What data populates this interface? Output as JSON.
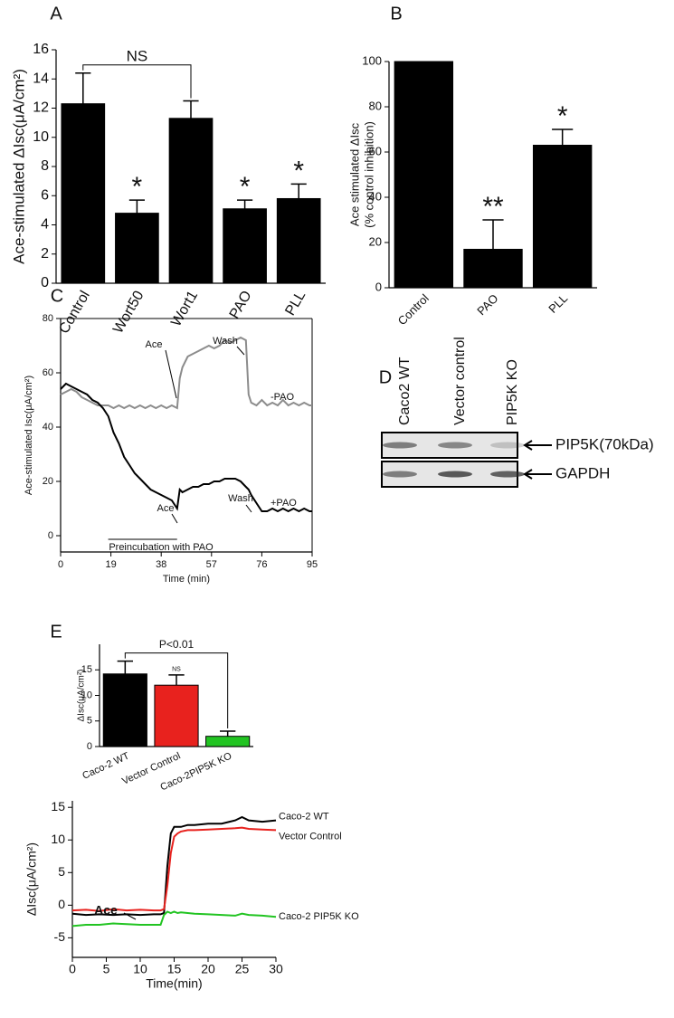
{
  "chart_data": [
    {
      "panel": "A",
      "type": "bar",
      "y_label": "Ace-stimulated ΔIsc(μA/cm²)",
      "categories": [
        "Control",
        "Wort50",
        "Wort1",
        "PAO",
        "PLL"
      ],
      "values": [
        12.3,
        4.8,
        11.3,
        5.1,
        5.8
      ],
      "errors": [
        2.1,
        0.9,
        1.2,
        0.6,
        1.0
      ],
      "color": "#000000",
      "ylim": [
        0,
        16
      ],
      "yticks": [
        0,
        2,
        4,
        6,
        8,
        10,
        12,
        14,
        16
      ],
      "significance": [
        null,
        "*",
        null,
        "*",
        "*"
      ],
      "brackets": [
        {
          "from": 0,
          "to": 2,
          "label": "NS"
        }
      ]
    },
    {
      "panel": "B",
      "type": "bar",
      "y_label": [
        "Ace stimulated ΔIsc",
        "(% control inhibition)"
      ],
      "categories": [
        "Control",
        "PAO",
        "PLL"
      ],
      "values": [
        100,
        17,
        63
      ],
      "errors": [
        null,
        13,
        7
      ],
      "color": "#000000",
      "ylim": [
        0,
        100
      ],
      "yticks": [
        0,
        20,
        40,
        60,
        80,
        100
      ],
      "significance": [
        null,
        "**",
        "*"
      ]
    },
    {
      "panel": "C",
      "type": "line",
      "y_label": "Ace-stimulated Isc(μA/cm²)",
      "x_label": "Time (min)",
      "x": [
        0,
        2,
        4,
        6,
        8,
        10,
        12,
        14,
        16,
        18,
        20,
        22,
        24,
        26,
        28,
        30,
        32,
        34,
        36,
        38,
        40,
        42,
        44,
        45,
        46,
        48,
        50,
        52,
        54,
        56,
        58,
        60,
        62,
        64,
        66,
        68,
        70,
        71,
        72,
        74,
        76,
        78,
        80,
        82,
        84,
        86,
        88,
        90,
        92,
        94,
        95
      ],
      "xlim": [
        0,
        95
      ],
      "xticks": [
        0,
        19,
        38,
        57,
        76,
        95
      ],
      "ylim": [
        -6,
        80
      ],
      "yticks": [
        0,
        20,
        40,
        60,
        80
      ],
      "series": [
        {
          "name": "-PAO",
          "color": "#8c8c8c",
          "values": [
            52,
            53,
            54,
            53,
            51,
            50,
            49,
            48,
            48,
            48,
            47,
            48,
            47,
            48,
            47,
            48,
            47,
            48,
            47,
            48,
            47,
            48,
            47,
            58,
            62,
            66,
            67,
            68,
            69,
            70,
            69,
            70,
            72,
            71,
            72,
            73,
            72,
            52,
            49,
            48,
            50,
            48,
            49,
            48,
            50,
            48,
            49,
            48,
            49,
            48,
            48
          ]
        },
        {
          "name": "+PAO",
          "color": "#000000",
          "values": [
            54,
            56,
            55,
            54,
            53,
            52,
            50,
            49,
            47,
            44,
            38,
            34,
            29,
            26,
            23,
            21,
            19,
            17,
            16,
            15,
            14,
            13,
            10,
            17,
            16,
            17,
            18,
            18,
            19,
            19,
            20,
            20,
            21,
            21,
            21,
            20,
            18,
            17,
            15,
            12,
            9,
            9,
            10,
            9,
            10,
            9,
            10,
            9,
            10,
            9,
            9
          ]
        }
      ],
      "annotations": [
        "Ace",
        "Wash",
        "Ace",
        "Wash",
        "Preincubation with PAO"
      ]
    },
    {
      "panel": "E",
      "type": "bar",
      "y_label": "ΔIsc(μA/cm²)",
      "categories": [
        "Caco-2 WT",
        "Vector Control",
        "Caco-2PIP5K KO"
      ],
      "values": [
        14.2,
        12,
        2
      ],
      "errors": [
        2.5,
        2,
        1
      ],
      "colors": [
        "#000000",
        "#e8221e",
        "#22c422"
      ],
      "ylim": [
        0,
        20
      ],
      "yticks": [
        0,
        5,
        10,
        15
      ],
      "significance": [
        null,
        "NS",
        null
      ],
      "brackets": [
        {
          "from": 0,
          "to": 2,
          "label": "P<0.01"
        }
      ]
    },
    {
      "type": "line",
      "y_label": "ΔIsc(μA/cm²)",
      "x_label": "Time(min)",
      "x": [
        0,
        2,
        4,
        6,
        8,
        10,
        12,
        13,
        13.5,
        14,
        14.5,
        15,
        15.5,
        16,
        17,
        18,
        20,
        22,
        24,
        25,
        26,
        28,
        30
      ],
      "xlim": [
        0,
        30
      ],
      "xticks": [
        0,
        5,
        10,
        15,
        20,
        25,
        30
      ],
      "ylim": [
        -8,
        16
      ],
      "yticks": [
        -5,
        0,
        5,
        10,
        15
      ],
      "series": [
        {
          "name": "Caco-2 WT",
          "color": "#000000",
          "values": [
            -1.3,
            -1.5,
            -1.4,
            -1.5,
            -1.4,
            -1.5,
            -1.4,
            -1.4,
            -1.2,
            6,
            11,
            12,
            12,
            12,
            12.3,
            12.3,
            12.5,
            12.5,
            13,
            13.5,
            13,
            12.8,
            13
          ]
        },
        {
          "name": "Vector Control",
          "color": "#e8221e",
          "values": [
            -0.8,
            -0.7,
            -0.9,
            -0.6,
            -0.8,
            -0.7,
            -0.8,
            -0.8,
            -0.6,
            3,
            8,
            10.5,
            11,
            11.3,
            11.5,
            11.5,
            11.6,
            11.7,
            11.8,
            11.9,
            11.7,
            11.6,
            11.5
          ]
        },
        {
          "name": "Caco-2 PIP5K KO",
          "color": "#22c422",
          "values": [
            -3.2,
            -3,
            -3,
            -2.8,
            -2.9,
            -3,
            -3,
            -3,
            -1.5,
            -1,
            -1.2,
            -1,
            -1.2,
            -1.1,
            -1.2,
            -1.3,
            -1.4,
            -1.5,
            -1.6,
            -1.3,
            -1.5,
            -1.6,
            -1.8
          ]
        }
      ],
      "annotations": [
        "Ace"
      ]
    }
  ],
  "blot": {
    "panel": "D",
    "lanes": [
      "Caco2 WT",
      "Vector control",
      "PIP5K KO"
    ],
    "bands": [
      "PIP5K(70kDa)",
      "GAPDH"
    ]
  }
}
